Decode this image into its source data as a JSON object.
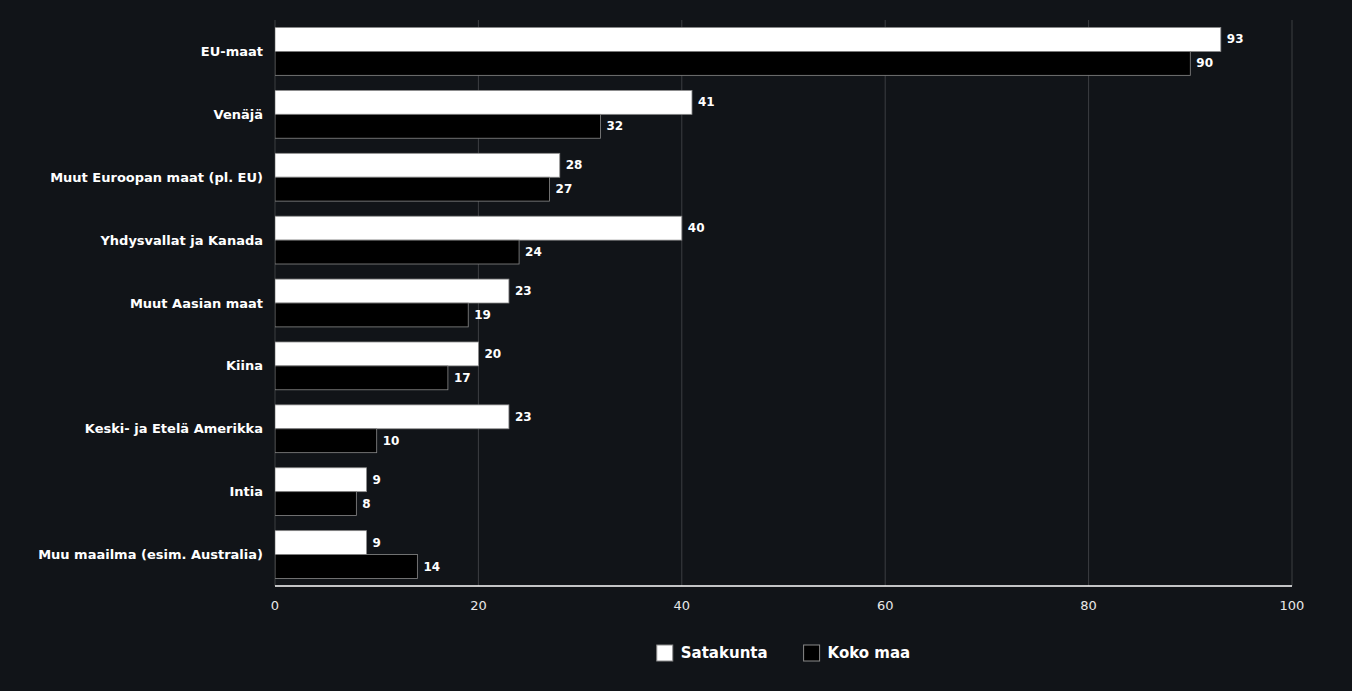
{
  "chart_data": {
    "type": "bar",
    "orientation": "horizontal",
    "categories": [
      "EU-maat",
      "Venäjä",
      "Muut Euroopan maat (pl. EU)",
      "Yhdysvallat ja Kanada",
      "Muut Aasian maat",
      "Kiina",
      "Keski- ja Etelä Amerikka",
      "Intia",
      "Muu maailma (esim. Australia)"
    ],
    "series": [
      {
        "name": "Satakunta",
        "color": "#ffffff",
        "values": [
          93,
          41,
          28,
          40,
          23,
          20,
          23,
          9,
          9
        ]
      },
      {
        "name": "Koko maa",
        "color": "#000000",
        "values": [
          90,
          32,
          27,
          24,
          19,
          17,
          10,
          8,
          14
        ]
      }
    ],
    "xlim": [
      0,
      100
    ],
    "xticks": [
      0,
      20,
      40,
      60,
      80,
      100
    ],
    "grid": true,
    "data_labels": true,
    "legend": "bottom"
  }
}
